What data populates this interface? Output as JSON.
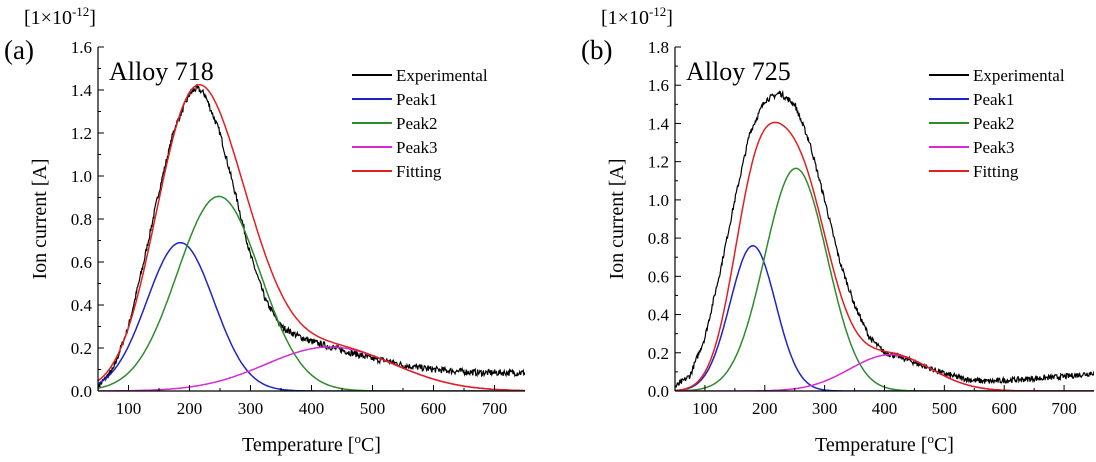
{
  "figure": {
    "panels": [
      {
        "label": "(a)",
        "title": "Alloy 718",
        "multiplier": "[1×10",
        "multiplier_exp": "-12",
        "multiplier_close": "]"
      },
      {
        "label": "(b)",
        "title": "Alloy 725",
        "multiplier": "[1×10",
        "multiplier_exp": "-12",
        "multiplier_close": "]"
      }
    ]
  },
  "chart_data": [
    {
      "type": "line",
      "title": "Alloy 718",
      "panel_label": "(a)",
      "xlabel": "Temperature [",
      "xlabel_sup": "o",
      "xlabel_end": "C]",
      "ylabel": "Ion current [A]",
      "xlim": [
        50,
        750
      ],
      "ylim": [
        0,
        1.6
      ],
      "x_ticks": [
        100,
        200,
        300,
        400,
        500,
        600,
        700
      ],
      "y_ticks": [
        0.0,
        0.2,
        0.4,
        0.6,
        0.8,
        1.0,
        1.2,
        1.4,
        1.6
      ],
      "y_tick_labels": [
        "0.0",
        "0.2",
        "0.4",
        "0.6",
        "0.8",
        "1.0",
        "1.2",
        "1.4",
        "1.6"
      ],
      "grid": false,
      "legend_position": "top-right",
      "series": [
        {
          "name": "Experimental",
          "color": "#000000",
          "kind": "noisy",
          "x": [
            50,
            75,
            100,
            125,
            150,
            175,
            200,
            212,
            225,
            250,
            275,
            300,
            325,
            350,
            375,
            400,
            425,
            450,
            475,
            500,
            525,
            550,
            575,
            600,
            625,
            650,
            675,
            700,
            725,
            750
          ],
          "y": [
            0.02,
            0.1,
            0.3,
            0.6,
            0.93,
            1.22,
            1.38,
            1.41,
            1.38,
            1.2,
            0.92,
            0.63,
            0.42,
            0.3,
            0.26,
            0.23,
            0.21,
            0.19,
            0.17,
            0.15,
            0.14,
            0.12,
            0.11,
            0.1,
            0.095,
            0.09,
            0.085,
            0.085,
            0.085,
            0.085
          ]
        },
        {
          "name": "Peak1",
          "color": "#1f24c8",
          "kind": "gauss",
          "amp": 0.69,
          "center": 185,
          "sigma": 55
        },
        {
          "name": "Peak2",
          "color": "#2e8b2e",
          "kind": "gauss",
          "amp": 0.905,
          "center": 248,
          "sigma": 68
        },
        {
          "name": "Peak3",
          "color": "#d62ad6",
          "kind": "gauss",
          "amp": 0.205,
          "center": 430,
          "sigma": 105
        },
        {
          "name": "Fitting",
          "color": "#e02020",
          "kind": "sum"
        }
      ]
    },
    {
      "type": "line",
      "title": "Alloy 725",
      "panel_label": "(b)",
      "xlabel": "Temperature [",
      "xlabel_sup": "o",
      "xlabel_end": "C]",
      "ylabel": "Ion current [A]",
      "xlim": [
        50,
        750
      ],
      "ylim": [
        0,
        1.8
      ],
      "x_ticks": [
        100,
        200,
        300,
        400,
        500,
        600,
        700
      ],
      "y_ticks": [
        0.0,
        0.2,
        0.4,
        0.6,
        0.8,
        1.0,
        1.2,
        1.4,
        1.6,
        1.8
      ],
      "y_tick_labels": [
        "0.0",
        "0.2",
        "0.4",
        "0.6",
        "0.8",
        "1.0",
        "1.2",
        "1.4",
        "1.6",
        "1.8"
      ],
      "grid": false,
      "legend_position": "top-right",
      "series": [
        {
          "name": "Experimental",
          "color": "#000000",
          "kind": "noisy",
          "x": [
            50,
            75,
            100,
            125,
            150,
            175,
            200,
            225,
            250,
            275,
            300,
            325,
            350,
            375,
            400,
            425,
            450,
            475,
            500,
            525,
            550,
            575,
            600,
            625,
            650,
            675,
            700,
            725,
            750
          ],
          "y": [
            0.02,
            0.08,
            0.28,
            0.62,
            1.0,
            1.35,
            1.52,
            1.56,
            1.5,
            1.3,
            1.0,
            0.68,
            0.45,
            0.28,
            0.2,
            0.18,
            0.15,
            0.12,
            0.09,
            0.07,
            0.055,
            0.05,
            0.055,
            0.06,
            0.065,
            0.07,
            0.075,
            0.085,
            0.095
          ]
        },
        {
          "name": "Peak1",
          "color": "#1f24c8",
          "kind": "gauss",
          "amp": 0.76,
          "center": 180,
          "sigma": 38
        },
        {
          "name": "Peak2",
          "color": "#2e8b2e",
          "kind": "gauss",
          "amp": 1.165,
          "center": 252,
          "sigma": 52
        },
        {
          "name": "Peak3",
          "color": "#d62ad6",
          "kind": "gauss",
          "amp": 0.19,
          "center": 410,
          "sigma": 68
        },
        {
          "name": "Fitting",
          "color": "#e02020",
          "kind": "sum"
        }
      ]
    }
  ]
}
